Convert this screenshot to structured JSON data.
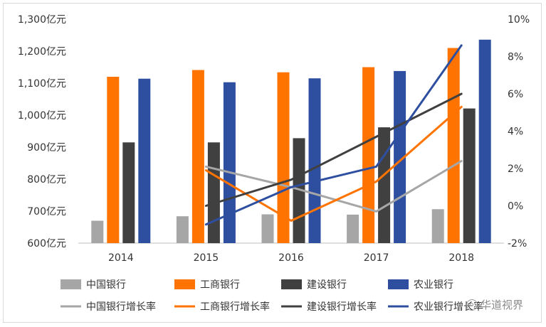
{
  "chart_data": {
    "type": "bar",
    "categories": [
      "2014",
      "2015",
      "2016",
      "2017",
      "2018"
    ],
    "y_left": {
      "range": [
        600,
        1300
      ],
      "ticks": [
        "600亿元",
        "700亿元",
        "800亿元",
        "900亿元",
        "1,000亿元",
        "1,100亿元",
        "1,200亿元",
        "1,300亿元"
      ]
    },
    "y_right": {
      "range": [
        -2,
        10
      ],
      "ticks": [
        "-2%",
        "0%",
        "2%",
        "4%",
        "6%",
        "8%",
        "10%"
      ]
    },
    "series": [
      {
        "name": "中国银行",
        "kind": "bar",
        "color": "#a6a6a6",
        "values": [
          670,
          684,
          690,
          689,
          706
        ]
      },
      {
        "name": "工商银行",
        "kind": "bar",
        "color": "#ff7300",
        "values": [
          1120,
          1141,
          1134,
          1150,
          1210
        ]
      },
      {
        "name": "建设银行",
        "kind": "bar",
        "color": "#404040",
        "values": [
          915,
          915,
          928,
          962,
          1021
        ]
      },
      {
        "name": "农业银行",
        "kind": "bar",
        "color": "#2e4fa0",
        "values": [
          1114,
          1103,
          1115,
          1138,
          1236
        ]
      },
      {
        "name": "中国银行增长率",
        "kind": "line",
        "color": "#a6a6a6",
        "values": [
          null,
          2.1,
          1.0,
          -0.3,
          2.4
        ]
      },
      {
        "name": "工商银行增长率",
        "kind": "line",
        "color": "#ff7300",
        "values": [
          null,
          1.9,
          -0.8,
          1.3,
          5.3
        ]
      },
      {
        "name": "建设银行增长率",
        "kind": "line",
        "color": "#404040",
        "values": [
          null,
          0.0,
          1.4,
          3.7,
          6.0
        ]
      },
      {
        "name": "农业银行增长率",
        "kind": "line",
        "color": "#2e4fa0",
        "values": [
          null,
          -1.0,
          1.0,
          2.1,
          8.6
        ]
      }
    ],
    "legend_position": "bottom",
    "grid": false
  },
  "watermark": {
    "text": "华道视界",
    "icon": "wechat-logo-icon"
  }
}
